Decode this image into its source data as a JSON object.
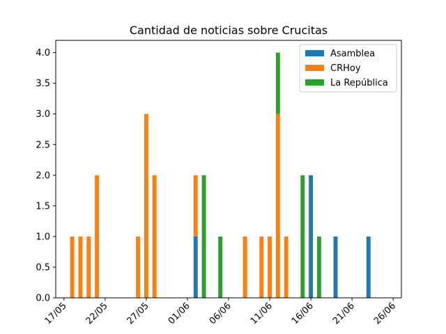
{
  "chart_data": {
    "type": "bar",
    "stacked": true,
    "title": "Cantidad de noticias sobre Crucitas",
    "xlabel": "",
    "ylabel": "",
    "ylim": [
      0,
      4.2
    ],
    "xlim": [
      "2021-05-16",
      "2021-06-27"
    ],
    "x_ticks": [
      "17/05",
      "22/05",
      "27/05",
      "01/06",
      "06/06",
      "11/06",
      "16/06",
      "21/06",
      "26/06"
    ],
    "x_tick_dates": [
      "2021-05-17",
      "2021-05-22",
      "2021-05-27",
      "2021-06-01",
      "2021-06-06",
      "2021-06-11",
      "2021-06-16",
      "2021-06-21",
      "2021-06-26"
    ],
    "y_ticks": [
      "0.0",
      "0.5",
      "1.0",
      "1.5",
      "2.0",
      "2.5",
      "3.0",
      "3.5",
      "4.0"
    ],
    "y_tick_values": [
      0,
      0.5,
      1,
      1.5,
      2,
      2.5,
      3,
      3.5,
      4
    ],
    "grid": false,
    "legend_position": "top-right",
    "series": [
      {
        "name": "Asamblea",
        "color": "#1f77b4",
        "points": [
          {
            "date": "2021-06-02",
            "value": 1
          },
          {
            "date": "2021-06-16",
            "value": 2
          },
          {
            "date": "2021-06-19",
            "value": 1
          },
          {
            "date": "2021-06-23",
            "value": 1
          }
        ]
      },
      {
        "name": "CRHoy",
        "color": "#ff7f0e",
        "points": [
          {
            "date": "2021-05-18",
            "value": 1
          },
          {
            "date": "2021-05-19",
            "value": 1
          },
          {
            "date": "2021-05-20",
            "value": 1
          },
          {
            "date": "2021-05-21",
            "value": 2
          },
          {
            "date": "2021-05-26",
            "value": 1
          },
          {
            "date": "2021-05-27",
            "value": 3
          },
          {
            "date": "2021-05-28",
            "value": 2
          },
          {
            "date": "2021-06-02",
            "value": 1
          },
          {
            "date": "2021-06-08",
            "value": 1
          },
          {
            "date": "2021-06-10",
            "value": 1
          },
          {
            "date": "2021-06-11",
            "value": 1
          },
          {
            "date": "2021-06-12",
            "value": 3
          },
          {
            "date": "2021-06-13",
            "value": 1
          }
        ]
      },
      {
        "name": "La República",
        "color": "#2ca02c",
        "points": [
          {
            "date": "2021-06-03",
            "value": 2
          },
          {
            "date": "2021-06-05",
            "value": 1
          },
          {
            "date": "2021-06-12",
            "value": 1
          },
          {
            "date": "2021-06-15",
            "value": 2
          },
          {
            "date": "2021-06-17",
            "value": 1
          }
        ]
      }
    ]
  }
}
